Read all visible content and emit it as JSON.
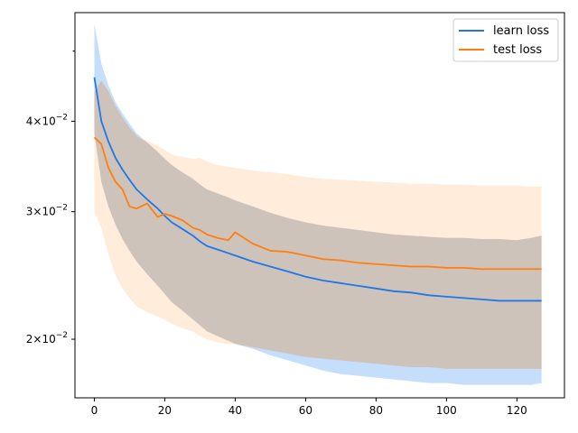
{
  "chart_data": {
    "type": "line",
    "title": "",
    "xlabel": "",
    "ylabel": "",
    "yscale": "log",
    "xlim": [
      -5.5,
      133.5
    ],
    "ylim": [
      0.0166,
      0.0565
    ],
    "x_ticks": [
      0,
      20,
      40,
      60,
      80,
      100,
      120
    ],
    "x_tick_labels": [
      "0",
      "20",
      "40",
      "60",
      "80",
      "100",
      "120"
    ],
    "y_ticks": [
      0.02,
      0.03,
      0.04
    ],
    "y_tick_labels": [
      {
        "mantissa": "2",
        "base": "10",
        "exp": "−2"
      },
      {
        "mantissa": "3",
        "base": "10",
        "exp": "−2"
      },
      {
        "mantissa": "4",
        "base": "10",
        "exp": "−2"
      }
    ],
    "y_minor_ticks": [
      0.05
    ],
    "grid": false,
    "legend_position": "top-right",
    "x_points": [
      0,
      2,
      4,
      6,
      8,
      10,
      12,
      15,
      18,
      20,
      22,
      25,
      28,
      30,
      32,
      35,
      38,
      40,
      45,
      50,
      55,
      60,
      65,
      70,
      75,
      80,
      85,
      90,
      95,
      100,
      105,
      110,
      115,
      120,
      124,
      127
    ],
    "series": [
      {
        "name": "learn loss",
        "color": "#1f77e8",
        "band_color": "#c2dcfb",
        "values": [
          0.046,
          0.04,
          0.0375,
          0.0356,
          0.0343,
          0.0332,
          0.0322,
          0.0312,
          0.0303,
          0.0296,
          0.029,
          0.0284,
          0.0278,
          0.0273,
          0.0269,
          0.0266,
          0.0263,
          0.0261,
          0.0256,
          0.0252,
          0.0248,
          0.0244,
          0.0241,
          0.0239,
          0.0237,
          0.0235,
          0.0233,
          0.0232,
          0.023,
          0.0229,
          0.0228,
          0.0227,
          0.0226,
          0.0226,
          0.0226,
          0.0226
        ],
        "upper": [
          0.0545,
          0.048,
          0.0448,
          0.0425,
          0.041,
          0.0397,
          0.0385,
          0.0374,
          0.0363,
          0.0355,
          0.0348,
          0.034,
          0.0333,
          0.0327,
          0.0322,
          0.0318,
          0.0314,
          0.0311,
          0.0305,
          0.0299,
          0.0294,
          0.029,
          0.0287,
          0.0285,
          0.0283,
          0.0281,
          0.0279,
          0.0278,
          0.0277,
          0.0276,
          0.0276,
          0.0275,
          0.0275,
          0.0274,
          0.0276,
          0.0278
        ],
        "lower": [
          0.0385,
          0.033,
          0.0305,
          0.0288,
          0.0275,
          0.0265,
          0.0256,
          0.0246,
          0.0237,
          0.0231,
          0.0225,
          0.0219,
          0.0213,
          0.0209,
          0.0205,
          0.0202,
          0.0199,
          0.0197,
          0.0194,
          0.019,
          0.0187,
          0.0184,
          0.0181,
          0.0179,
          0.0178,
          0.0177,
          0.0176,
          0.0175,
          0.0174,
          0.0174,
          0.0173,
          0.0173,
          0.0173,
          0.0173,
          0.0173,
          0.0174
        ]
      },
      {
        "name": "test loss",
        "color": "#ff7f0e",
        "band_color": "#ffdfc1",
        "values": [
          0.038,
          0.0372,
          0.0345,
          0.033,
          0.0322,
          0.0305,
          0.0303,
          0.0308,
          0.0295,
          0.0298,
          0.0296,
          0.0292,
          0.0285,
          0.0283,
          0.0279,
          0.0276,
          0.0274,
          0.0281,
          0.0271,
          0.0265,
          0.0264,
          0.0261,
          0.0258,
          0.0257,
          0.0255,
          0.0254,
          0.0253,
          0.0252,
          0.0252,
          0.0251,
          0.0251,
          0.025,
          0.025,
          0.025,
          0.025,
          0.025
        ],
        "upper": [
          0.044,
          0.0455,
          0.044,
          0.042,
          0.0405,
          0.0392,
          0.0382,
          0.0376,
          0.037,
          0.0365,
          0.036,
          0.0357,
          0.0355,
          0.0356,
          0.0352,
          0.0348,
          0.0346,
          0.0345,
          0.0342,
          0.034,
          0.0338,
          0.0335,
          0.0333,
          0.0332,
          0.0331,
          0.033,
          0.0329,
          0.0328,
          0.0328,
          0.0327,
          0.0327,
          0.0326,
          0.0326,
          0.0326,
          0.0325,
          0.0325
        ],
        "lower": [
          0.03,
          0.0285,
          0.0262,
          0.0245,
          0.0235,
          0.0228,
          0.0222,
          0.0218,
          0.0215,
          0.0213,
          0.021,
          0.0207,
          0.0205,
          0.0202,
          0.02,
          0.0198,
          0.0197,
          0.0197,
          0.0195,
          0.0193,
          0.0191,
          0.0189,
          0.0188,
          0.0187,
          0.0186,
          0.0185,
          0.0184,
          0.0183,
          0.0183,
          0.0182,
          0.0182,
          0.0182,
          0.0182,
          0.0182,
          0.0182,
          0.0182
        ]
      }
    ]
  }
}
